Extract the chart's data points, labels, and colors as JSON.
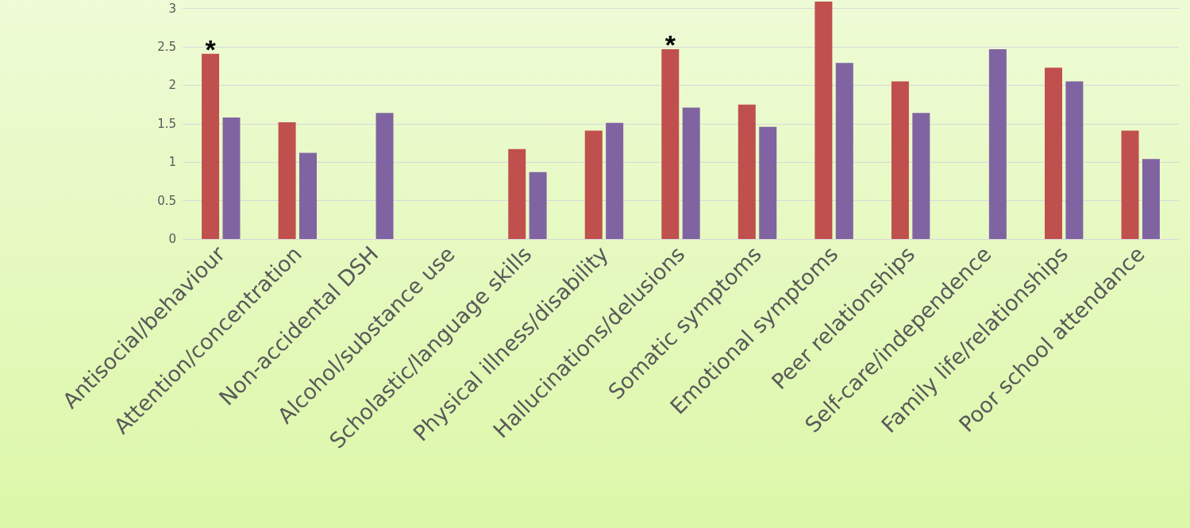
{
  "chart_data": {
    "type": "bar",
    "categories": [
      "Antisocial/behaviour",
      "Attention/concentration",
      "Non-accidental DSH",
      "Alcohol/substance use",
      "Scholastic/language skills",
      "Physical illness/disability",
      "Hallucinations/delusions",
      "Somatic symptoms",
      "Emotional symptoms",
      "Peer relationships",
      "Self-care/independence",
      "Family life/relationships",
      "Poor school attendance"
    ],
    "series": [
      {
        "color": "#c0504d",
        "values": [
          2.41,
          1.52,
          null,
          null,
          1.17,
          1.41,
          2.47,
          1.75,
          3.09,
          2.05,
          null,
          2.23,
          1.41
        ]
      },
      {
        "color": "#8064a2",
        "values": [
          1.58,
          1.12,
          1.64,
          null,
          0.87,
          1.51,
          1.71,
          1.46,
          2.29,
          1.64,
          2.47,
          2.05,
          1.04
        ]
      }
    ],
    "ylim": [
      0,
      3.11
    ],
    "yticks": [
      0,
      0.5,
      1,
      1.5,
      2,
      2.5,
      3
    ],
    "grid": "y",
    "annotations": [
      {
        "text": "*",
        "x": "Antisocial/behaviour",
        "y": 2.41
      },
      {
        "text": "*",
        "x": "Hallucinations/delusions",
        "y": 2.47
      }
    ]
  }
}
